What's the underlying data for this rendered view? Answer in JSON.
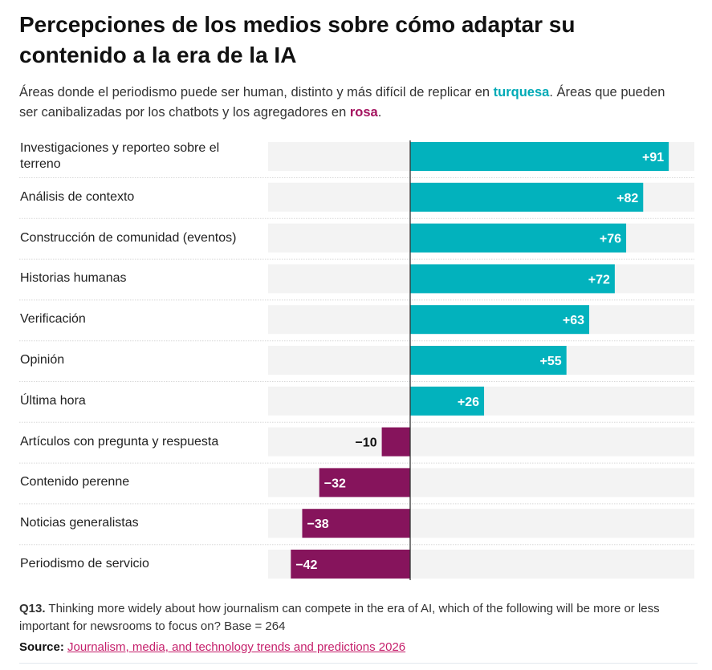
{
  "title": "Percepciones de los medios sobre cómo adaptar su contenido a la era de la IA",
  "subtitle": {
    "part1": "Áreas donde el periodismo puede ser human, distinto y más difícil de replicar en ",
    "teal_word": "turquesa",
    "part2": ". Áreas que pueden ser canibalizadas por los chatbots y los agregadores en ",
    "rosa_word": "rosa",
    "part3": "."
  },
  "colors": {
    "positive": "#02b2bd",
    "negative": "#86145c",
    "track": "#f3f3f3"
  },
  "chart_data": {
    "type": "bar",
    "orientation": "horizontal",
    "categories": [
      "Investigaciones y reporteo sobre el terreno",
      "Análisis de contexto",
      "Construcción de comunidad (eventos)",
      "Historias humanas",
      "Verificación",
      "Opinión",
      "Última hora",
      "Artículos con pregunta y respuesta",
      "Contenido perenne",
      "Noticias generalistas",
      "Periodismo de servicio"
    ],
    "values": [
      91,
      82,
      76,
      72,
      63,
      55,
      26,
      -10,
      -32,
      -38,
      -42
    ],
    "value_labels": [
      "+91",
      "+82",
      "+76",
      "+72",
      "+63",
      "+55",
      "+26",
      "−10",
      "−32",
      "−38",
      "−42"
    ],
    "xlim": [
      -50,
      100
    ]
  },
  "footnote": {
    "bold": "Q13.",
    "text": " Thinking more widely about how journalism can compete in the era of AI, which of the following will be more or less important for newsrooms to focus on? Base = 264"
  },
  "source": {
    "label": "Source:",
    "link": "Journalism, media, and technology trends and predictions 2026"
  }
}
